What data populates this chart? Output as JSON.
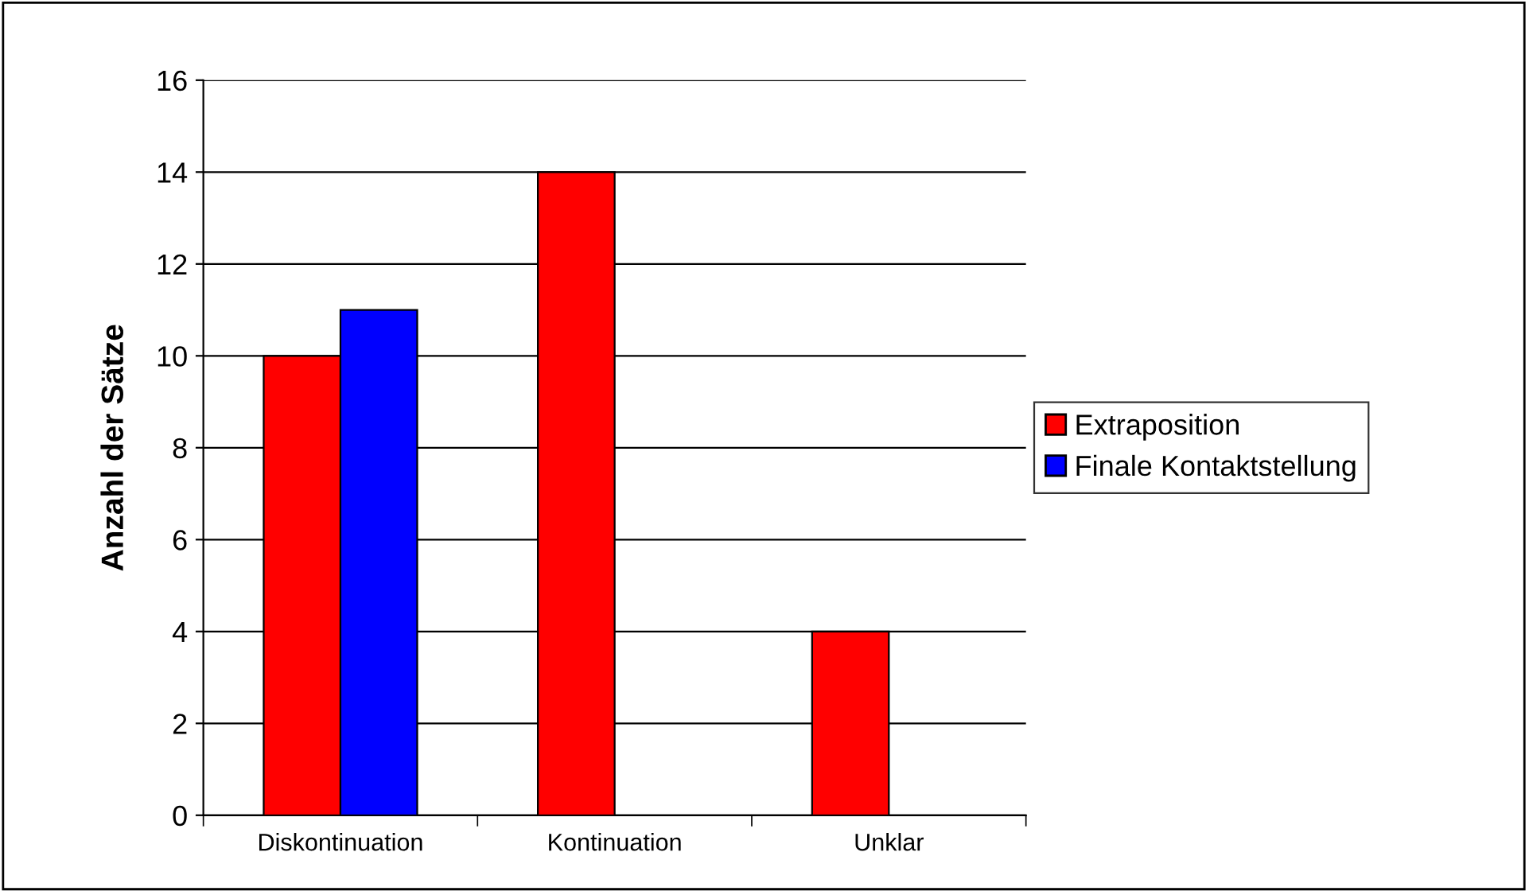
{
  "chart_data": {
    "type": "bar",
    "ylabel": "Anzahl der Sätze",
    "categories": [
      "Diskontinuation",
      "Kontinuation",
      "Unklar"
    ],
    "series": [
      {
        "name": "Extraposition",
        "color": "#ff0000",
        "values": [
          10,
          14,
          4
        ]
      },
      {
        "name": "Finale Kontaktstellung",
        "color": "#0000ff",
        "values": [
          11,
          null,
          null
        ]
      }
    ],
    "ylim": [
      0,
      16
    ],
    "yticks": [
      0,
      2,
      4,
      6,
      8,
      10,
      12,
      14,
      16
    ],
    "grid": "y",
    "legend": "right"
  }
}
